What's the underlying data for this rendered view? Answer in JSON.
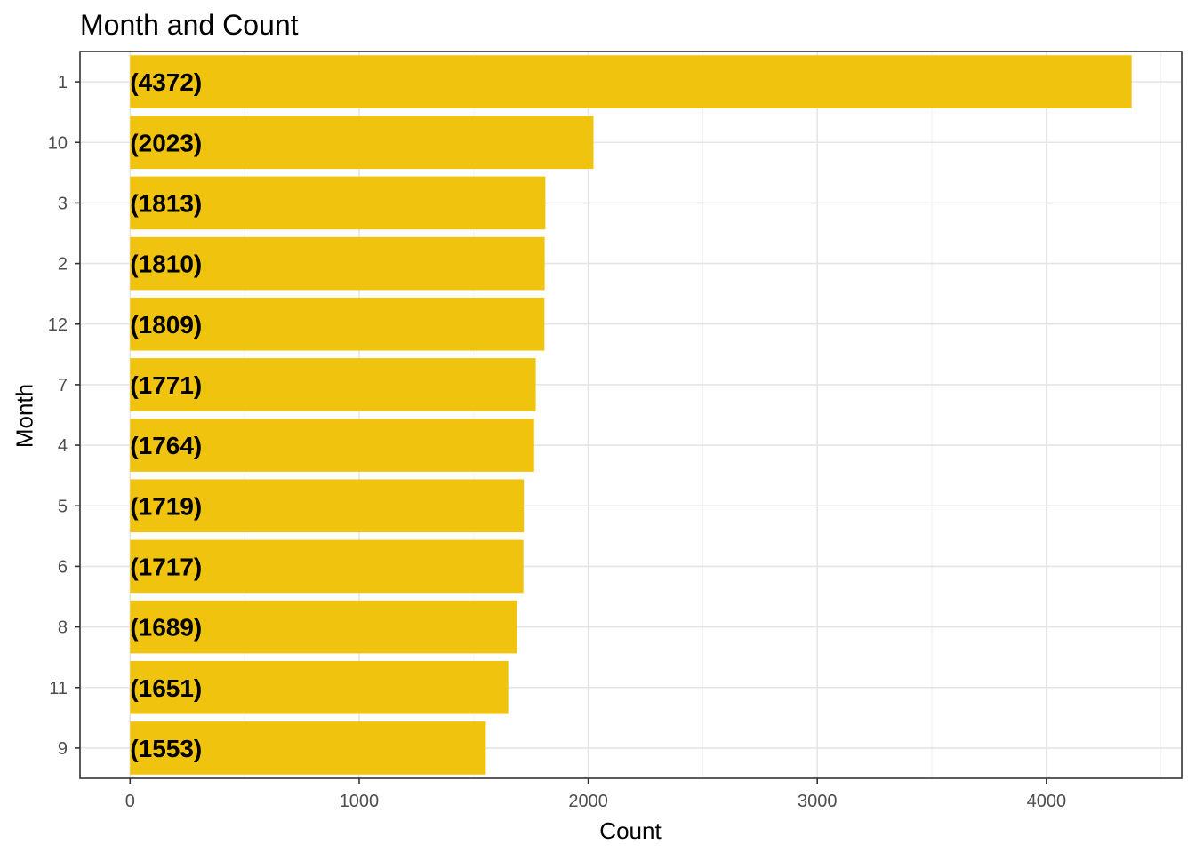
{
  "chart_data": {
    "type": "bar",
    "orientation": "horizontal",
    "title": "Month and Count",
    "xlabel": "Count",
    "ylabel": "Month",
    "categories": [
      "1",
      "10",
      "3",
      "2",
      "12",
      "7",
      "4",
      "5",
      "6",
      "8",
      "11",
      "9"
    ],
    "values": [
      4372,
      2023,
      1813,
      1810,
      1809,
      1771,
      1764,
      1719,
      1717,
      1689,
      1651,
      1553
    ],
    "data_labels": [
      "(4372)",
      "(2023)",
      "(1813)",
      "(1810)",
      "(1809)",
      "(1771)",
      "(1764)",
      "(1719)",
      "(1717)",
      "(1689)",
      "(1651)",
      "(1553)"
    ],
    "xlim": [
      -218.6,
      4590.6
    ],
    "xticks": [
      0,
      1000,
      2000,
      3000,
      4000
    ],
    "xtick_labels": [
      "0",
      "1000",
      "2000",
      "3000",
      "4000"
    ],
    "bar_color": "#F0C30F",
    "grid": true,
    "legend": "none"
  }
}
